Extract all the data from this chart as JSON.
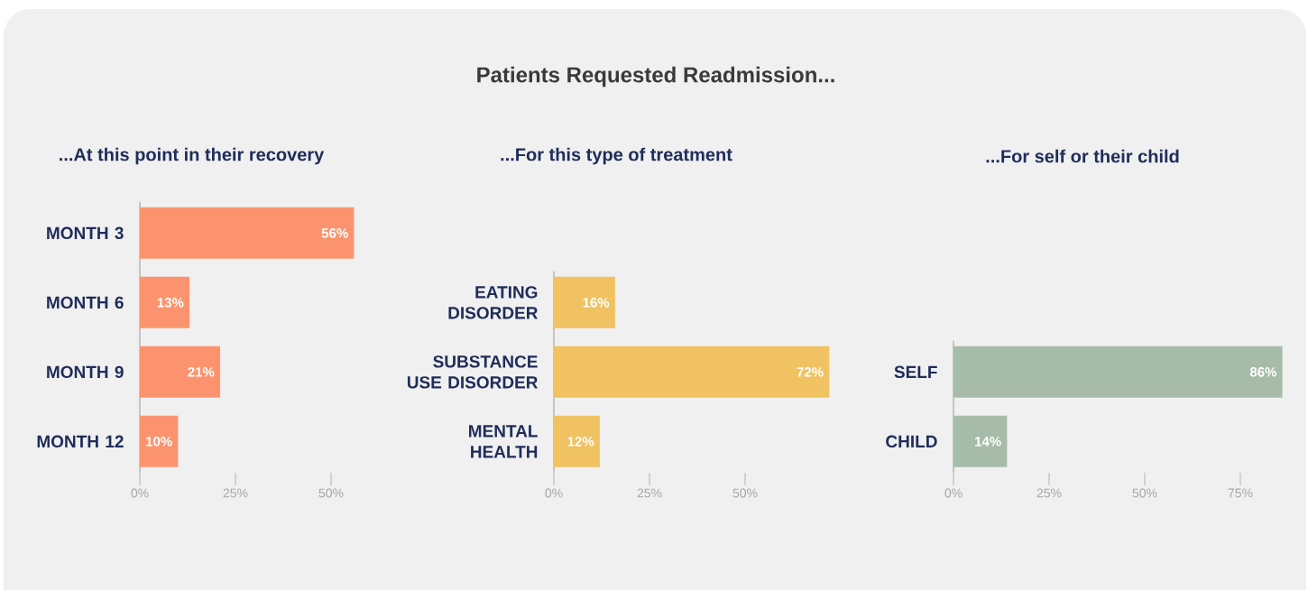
{
  "chart_data": [
    {
      "type": "bar",
      "orientation": "horizontal",
      "subtitle": "...At this point in their recovery",
      "categories": [
        "MONTH 3",
        "MONTH 6",
        "MONTH 9",
        "MONTH 12"
      ],
      "values": [
        56,
        13,
        21,
        10
      ],
      "value_labels": [
        "56%",
        "13%",
        "21%",
        "10%"
      ],
      "color": "#fb946e",
      "xlim": [
        0,
        56
      ],
      "xticks": [
        {
          "value": 0,
          "label": "0%"
        },
        {
          "value": 25,
          "label": "25%"
        },
        {
          "value": 50,
          "label": "50%"
        }
      ]
    },
    {
      "type": "bar",
      "orientation": "horizontal",
      "title": "Patients Requested Readmission...",
      "subtitle": "...For this type of treatment",
      "categories": [
        "EATING DISORDER",
        "SUBSTANCE USE DISORDER",
        "MENTAL HEALTH"
      ],
      "values": [
        16,
        72,
        12
      ],
      "value_labels": [
        "16%",
        "72%",
        "12%"
      ],
      "color": "#f0c262",
      "xlim": [
        0,
        72
      ],
      "xticks": [
        {
          "value": 0,
          "label": "0%"
        },
        {
          "value": 25,
          "label": "25%"
        },
        {
          "value": 50,
          "label": "50%"
        }
      ]
    },
    {
      "type": "bar",
      "orientation": "horizontal",
      "subtitle": "...For self or their child",
      "categories": [
        "SELF",
        "CHILD"
      ],
      "values": [
        86,
        14
      ],
      "value_labels": [
        "86%",
        "14%"
      ],
      "color": "#a7bca8",
      "xlim": [
        0,
        86
      ],
      "xticks": [
        {
          "value": 0,
          "label": "0%"
        },
        {
          "value": 25,
          "label": "25%"
        },
        {
          "value": 50,
          "label": "50%"
        },
        {
          "value": 75,
          "label": "75%"
        }
      ]
    }
  ]
}
